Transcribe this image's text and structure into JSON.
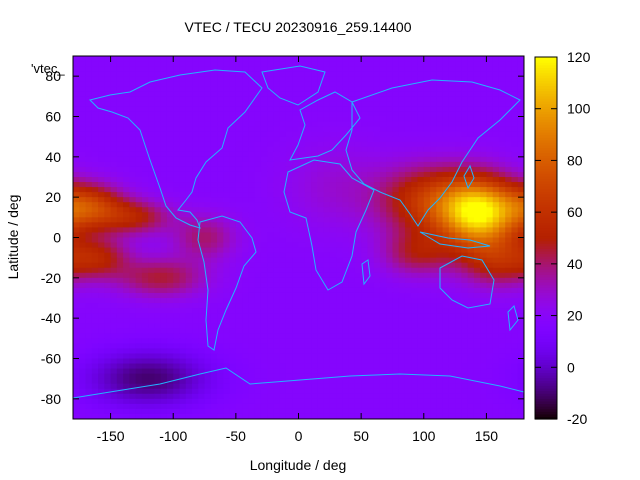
{
  "chart_data": {
    "type": "heatmap",
    "title": "VTEC / TECU 20230916_259.14400",
    "xlabel": "Longitude / deg",
    "ylabel": "Latitude / deg",
    "key_label": "'vtec_",
    "xlim": [
      -180,
      180
    ],
    "ylim": [
      -90,
      90
    ],
    "xticks": [
      -150,
      -100,
      -50,
      0,
      50,
      100,
      150
    ],
    "yticks": [
      -80,
      -60,
      -40,
      -20,
      0,
      20,
      40,
      60,
      80
    ],
    "colorbar": {
      "range": [
        -20,
        120
      ],
      "ticks": [
        -20,
        0,
        20,
        40,
        60,
        80,
        100,
        120
      ],
      "palette": "black-blue-violet-red-orange-yellow"
    },
    "grid": false,
    "background_level": 18,
    "features": [
      {
        "lon": 145,
        "lat": 12,
        "peak": 108,
        "sx": 22,
        "sy": 12
      },
      {
        "lon": 105,
        "lat": 18,
        "peak": 62,
        "sx": 28,
        "sy": 12
      },
      {
        "lon": 160,
        "lat": -12,
        "peak": 50,
        "sx": 22,
        "sy": 9
      },
      {
        "lon": 95,
        "lat": -8,
        "peak": 44,
        "sx": 20,
        "sy": 8
      },
      {
        "lon": -168,
        "lat": 15,
        "peak": 68,
        "sx": 20,
        "sy": 8
      },
      {
        "lon": -130,
        "lat": 10,
        "peak": 48,
        "sx": 20,
        "sy": 6
      },
      {
        "lon": -160,
        "lat": -10,
        "peak": 48,
        "sx": 18,
        "sy": 7
      },
      {
        "lon": -110,
        "lat": -20,
        "peak": 45,
        "sx": 25,
        "sy": 7
      },
      {
        "lon": -75,
        "lat": 0,
        "peak": 40,
        "sx": 18,
        "sy": 8
      },
      {
        "lon": 30,
        "lat": 25,
        "peak": 28,
        "sx": 30,
        "sy": 15
      },
      {
        "lon": -120,
        "lat": -70,
        "peak": -10,
        "sx": 35,
        "sy": 10
      }
    ]
  }
}
